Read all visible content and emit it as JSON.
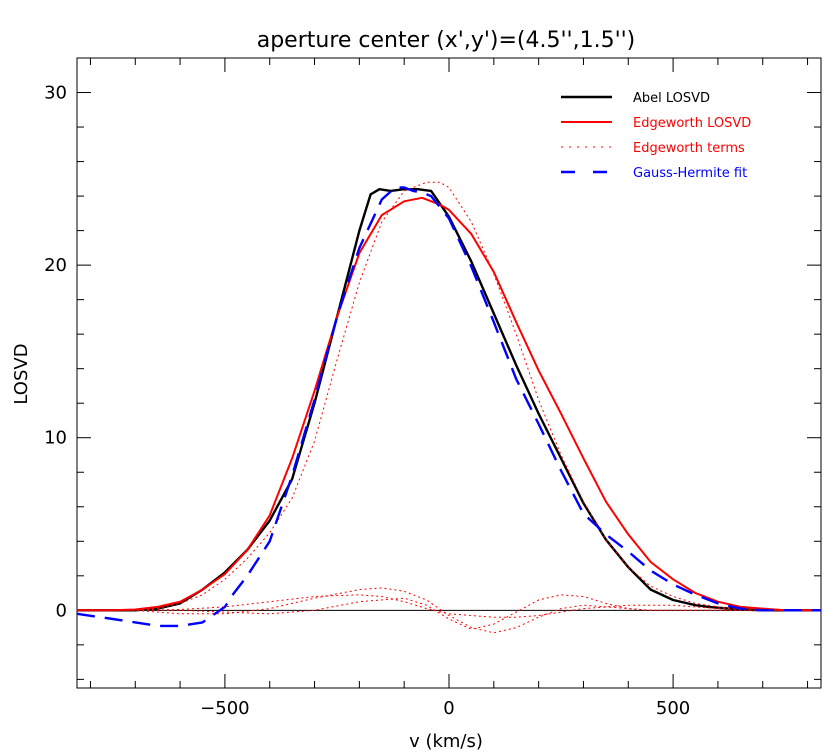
{
  "chart_data": {
    "type": "line",
    "title": "aperture center (x',y')=(4.5'',1.5'')",
    "xlabel": "v (km/s)",
    "ylabel": "LOSVD",
    "xlim": [
      -830,
      830
    ],
    "ylim": [
      -4.5,
      32
    ],
    "xticks": [
      -500,
      0,
      500
    ],
    "xtick_labels": [
      "−500",
      "0",
      "500"
    ],
    "yticks": [
      0,
      10,
      20,
      30
    ],
    "ytick_labels": [
      "0",
      "10",
      "20",
      "30"
    ],
    "grid": false,
    "legend_position": "top-right",
    "colors": {
      "black": "#000000",
      "red": "#ff0000",
      "blue": "#0000ff"
    },
    "series": [
      {
        "name": "Abel LOSVD",
        "color": "#000000",
        "style": "solid-thick",
        "x": [
          -830,
          -700,
          -650,
          -600,
          -550,
          -500,
          -450,
          -400,
          -350,
          -300,
          -250,
          -200,
          -175,
          -155,
          -130,
          -100,
          -70,
          -40,
          0,
          50,
          100,
          150,
          200,
          250,
          300,
          350,
          400,
          450,
          500,
          550,
          580,
          650,
          700,
          750,
          830
        ],
        "y": [
          0,
          0,
          0.1,
          0.4,
          1.2,
          2.2,
          3.5,
          5.2,
          7.6,
          12,
          17,
          22,
          24.1,
          24.4,
          24.3,
          24.4,
          24.4,
          24.3,
          22.8,
          20.2,
          17.2,
          14.2,
          11.4,
          8.8,
          6.2,
          4.1,
          2.5,
          1.2,
          0.6,
          0.3,
          0.2,
          0.05,
          0,
          0,
          0
        ]
      },
      {
        "name": "Edgeworth LOSVD",
        "color": "#ff0000",
        "style": "solid",
        "x": [
          -830,
          -750,
          -700,
          -650,
          -600,
          -550,
          -500,
          -450,
          -400,
          -350,
          -300,
          -250,
          -200,
          -150,
          -100,
          -60,
          -20,
          0,
          50,
          100,
          150,
          200,
          250,
          300,
          350,
          400,
          450,
          500,
          550,
          600,
          650,
          700,
          750,
          830
        ],
        "y": [
          0,
          0,
          0.05,
          0.2,
          0.5,
          1.2,
          2.1,
          3.5,
          5.5,
          8.8,
          12.7,
          17,
          20.7,
          22.9,
          23.7,
          23.9,
          23.5,
          23.2,
          21.8,
          19.6,
          16.7,
          13.9,
          11.4,
          8.8,
          6.3,
          4.4,
          2.8,
          1.8,
          1.0,
          0.5,
          0.2,
          0.1,
          0,
          0
        ]
      },
      {
        "name": "Edgeworth terms",
        "color": "#ff0000",
        "style": "dotted",
        "x": [
          -830,
          -700,
          -650,
          -600,
          -550,
          -500,
          -450,
          -400,
          -350,
          -300,
          -250,
          -200,
          -150,
          -100,
          -50,
          -20,
          0,
          50,
          100,
          150,
          200,
          250,
          300,
          350,
          400,
          450,
          500,
          550,
          600,
          650,
          700,
          830
        ],
        "y": [
          0,
          0,
          0.1,
          0.4,
          0.9,
          1.8,
          3.0,
          4.5,
          6.5,
          9.8,
          14.5,
          19.0,
          22.5,
          24.3,
          24.8,
          24.8,
          24.5,
          22.5,
          19.5,
          16.0,
          12.2,
          9.0,
          6.3,
          4.1,
          2.5,
          1.4,
          0.8,
          0.4,
          0.2,
          0.05,
          0,
          0
        ]
      },
      {
        "name": "",
        "color": "#ff0000",
        "style": "dotted",
        "x": [
          -830,
          -700,
          -600,
          -500,
          -400,
          -300,
          -200,
          -150,
          -100,
          -50,
          0,
          50,
          100,
          150,
          200,
          250,
          300,
          350,
          400,
          450,
          500,
          600,
          700,
          830
        ],
        "y": [
          0,
          0,
          -0.2,
          -0.2,
          0.1,
          0.7,
          1.2,
          1.3,
          1.1,
          0.6,
          -0.3,
          -1.0,
          -1.3,
          -1.0,
          -0.4,
          0.1,
          0.3,
          0.2,
          0.1,
          0,
          0,
          0,
          0,
          0
        ]
      },
      {
        "name": "",
        "color": "#ff0000",
        "style": "dotted",
        "x": [
          -830,
          -700,
          -600,
          -500,
          -400,
          -300,
          -200,
          -100,
          -50,
          0,
          50,
          100,
          150,
          200,
          250,
          300,
          350,
          400,
          450,
          500,
          600,
          700,
          830
        ],
        "y": [
          0,
          0,
          0,
          -0.1,
          -0.2,
          0,
          0.5,
          0.7,
          0.3,
          -0.5,
          -1.1,
          -0.8,
          -0.1,
          0.6,
          0.9,
          0.8,
          0.4,
          0.1,
          0,
          0,
          0,
          0,
          0
        ]
      },
      {
        "name": "",
        "color": "#ff0000",
        "style": "dotted",
        "x": [
          -830,
          -700,
          -600,
          -500,
          -400,
          -300,
          -200,
          -150,
          -100,
          -50,
          0,
          50,
          100,
          150,
          200,
          250,
          300,
          350,
          400,
          450,
          500,
          550,
          600,
          700,
          830
        ],
        "y": [
          0,
          0,
          0.05,
          0.2,
          0.5,
          0.8,
          0.9,
          0.8,
          0.5,
          0.1,
          -0.2,
          -0.3,
          -0.4,
          -0.4,
          -0.3,
          -0.1,
          0.1,
          0.2,
          0.3,
          0.3,
          0.3,
          0.2,
          0.1,
          0,
          0
        ]
      },
      {
        "name": "Gauss-Hermite fit",
        "color": "#0000ff",
        "style": "dashed",
        "x": [
          -830,
          -750,
          -700,
          -650,
          -600,
          -550,
          -500,
          -480,
          -450,
          -400,
          -350,
          -300,
          -250,
          -200,
          -150,
          -120,
          -100,
          -80,
          -60,
          -40,
          0,
          50,
          100,
          150,
          200,
          250,
          300,
          350,
          400,
          450,
          500,
          550,
          600,
          650,
          700,
          750,
          830
        ],
        "y": [
          -0.2,
          -0.5,
          -0.7,
          -0.9,
          -0.9,
          -0.7,
          0.2,
          1.0,
          2.0,
          4.0,
          7.8,
          12.2,
          17.0,
          21.0,
          23.8,
          24.5,
          24.5,
          24.3,
          24.2,
          24.0,
          22.7,
          19.9,
          16.7,
          13.4,
          10.8,
          8.1,
          5.6,
          4.4,
          3.4,
          2.3,
          1.5,
          0.9,
          0.4,
          0.1,
          0,
          0,
          0
        ]
      }
    ]
  }
}
